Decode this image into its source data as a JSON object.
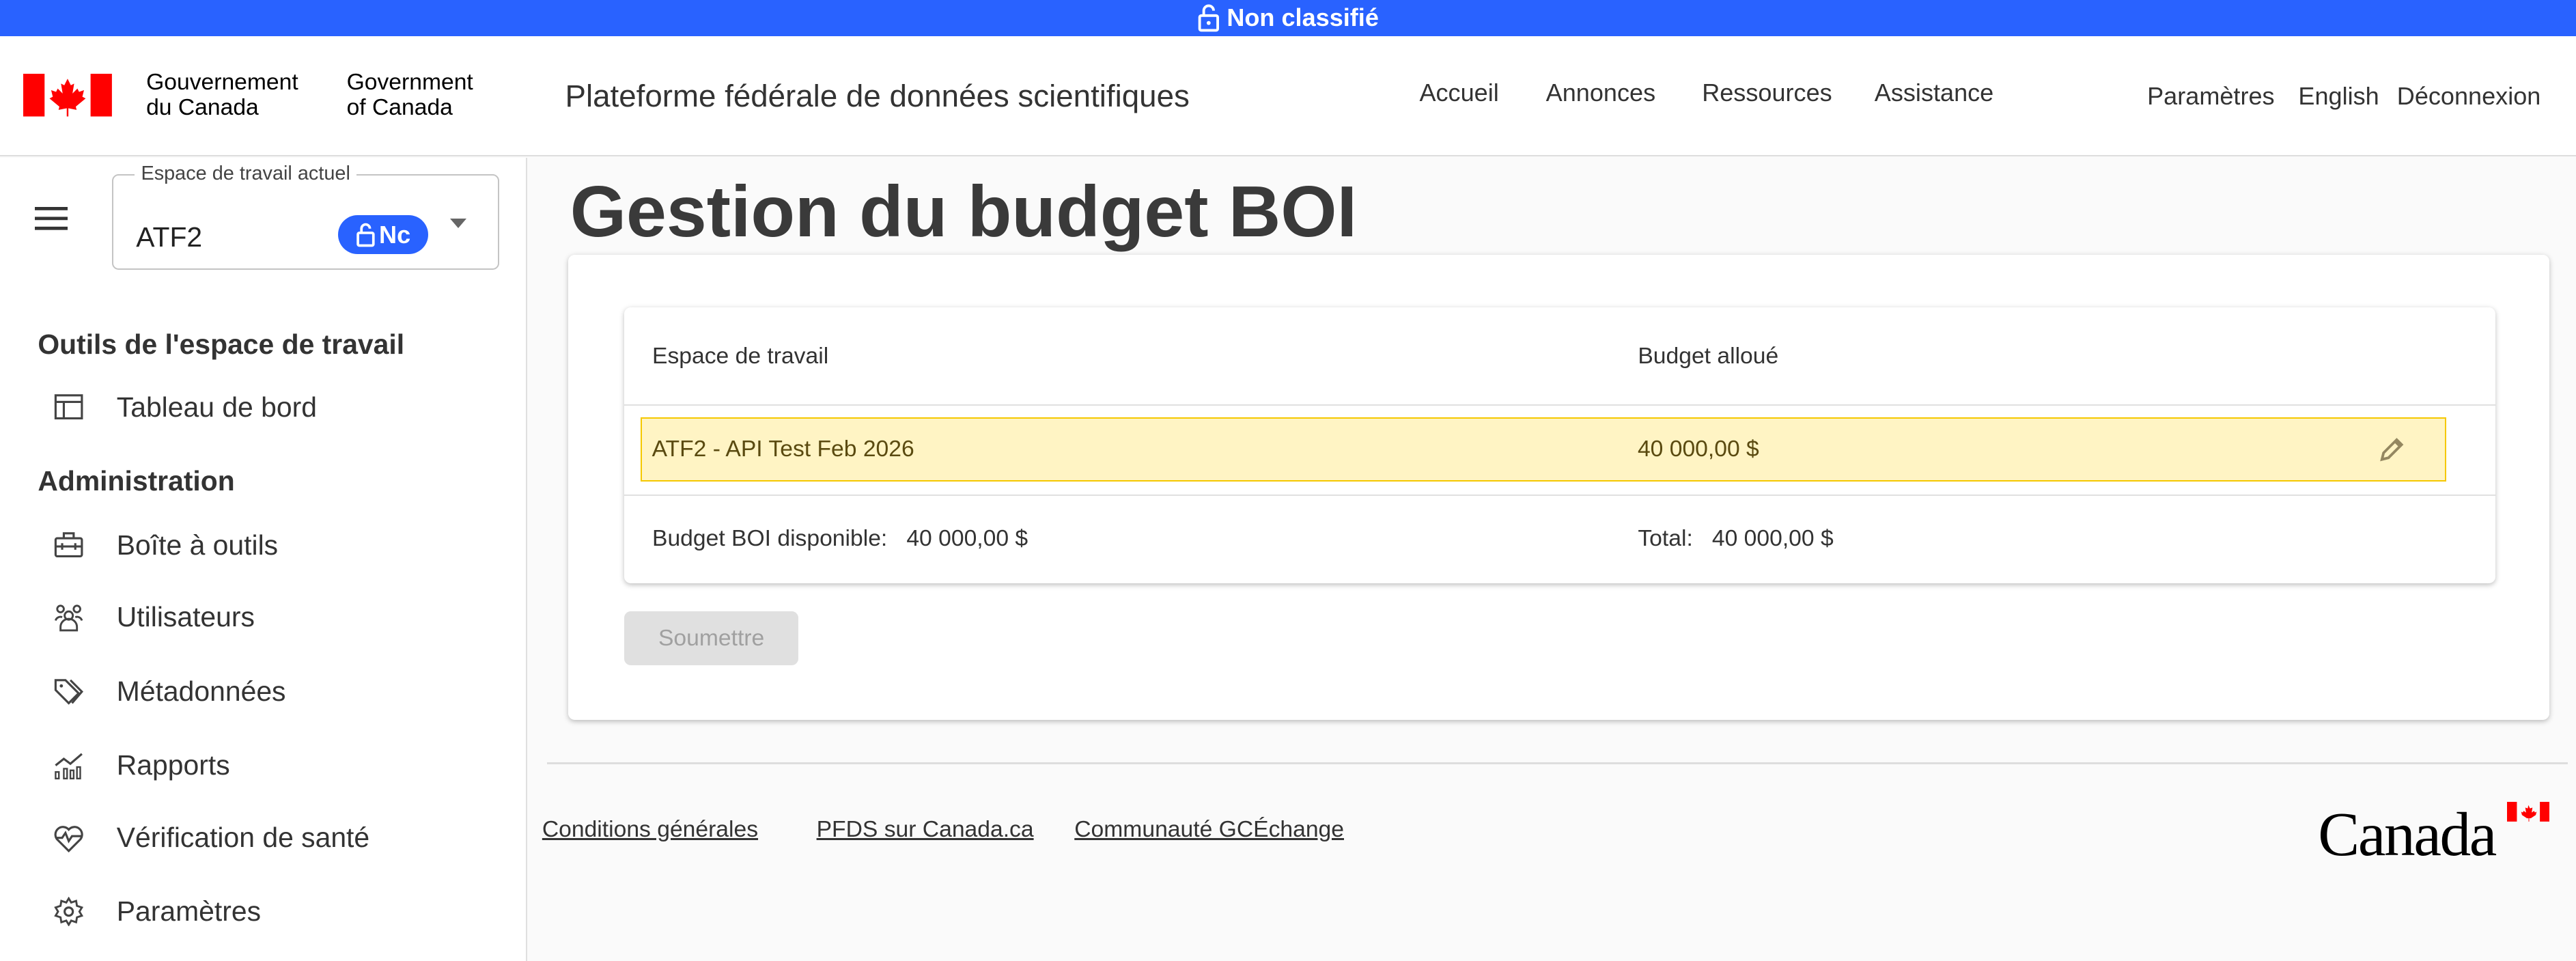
{
  "banner": {
    "label": "Non classifié",
    "icon": "lock-open-icon"
  },
  "header": {
    "gov_fr_line1": "Gouvernement",
    "gov_fr_line2": "du Canada",
    "gov_en_line1": "Government",
    "gov_en_line2": "of Canada",
    "site_title": "Plateforme fédérale de données scientifiques",
    "nav": [
      "Accueil",
      "Annonces",
      "Ressources",
      "Assistance"
    ],
    "utility": [
      "Paramètres",
      "English",
      "Déconnexion"
    ]
  },
  "sidebar": {
    "workspace_label": "Espace de travail actuel",
    "workspace_value": "ATF2",
    "workspace_badge": "Nc",
    "section1": "Outils de l'espace de travail",
    "section1_items": [
      {
        "label": "Tableau de bord",
        "icon": "dashboard-icon"
      }
    ],
    "section2": "Administration",
    "section2_items": [
      {
        "label": "Boîte à outils",
        "icon": "toolbox-icon"
      },
      {
        "label": "Utilisateurs",
        "icon": "users-icon"
      },
      {
        "label": "Métadonnées",
        "icon": "tags-icon"
      },
      {
        "label": "Rapports",
        "icon": "chart-icon"
      },
      {
        "label": "Vérification de santé",
        "icon": "heart-pulse-icon"
      },
      {
        "label": "Paramètres",
        "icon": "gear-icon"
      }
    ]
  },
  "main": {
    "title": "Gestion du budget BOI",
    "table": {
      "columns": [
        "Espace de travail",
        "Budget alloué"
      ],
      "rows": [
        {
          "workspace": "ATF2 - API Test Feb 2026",
          "budget": "40 000,00 $"
        }
      ],
      "available_label": "Budget BOI disponible:",
      "available_value": "40 000,00 $",
      "total_label": "Total:",
      "total_value": "40 000,00 $"
    },
    "submit_label": "Soumettre"
  },
  "footer": {
    "links": [
      "Conditions générales",
      "PFDS sur Canada.ca",
      "Communauté GCÉchange"
    ],
    "wordmark": "Canada"
  },
  "colors": {
    "banner": "#2962ff",
    "highlight": "#fff4c4",
    "highlight_border": "#f5c800",
    "flag_red": "#ff0000"
  }
}
